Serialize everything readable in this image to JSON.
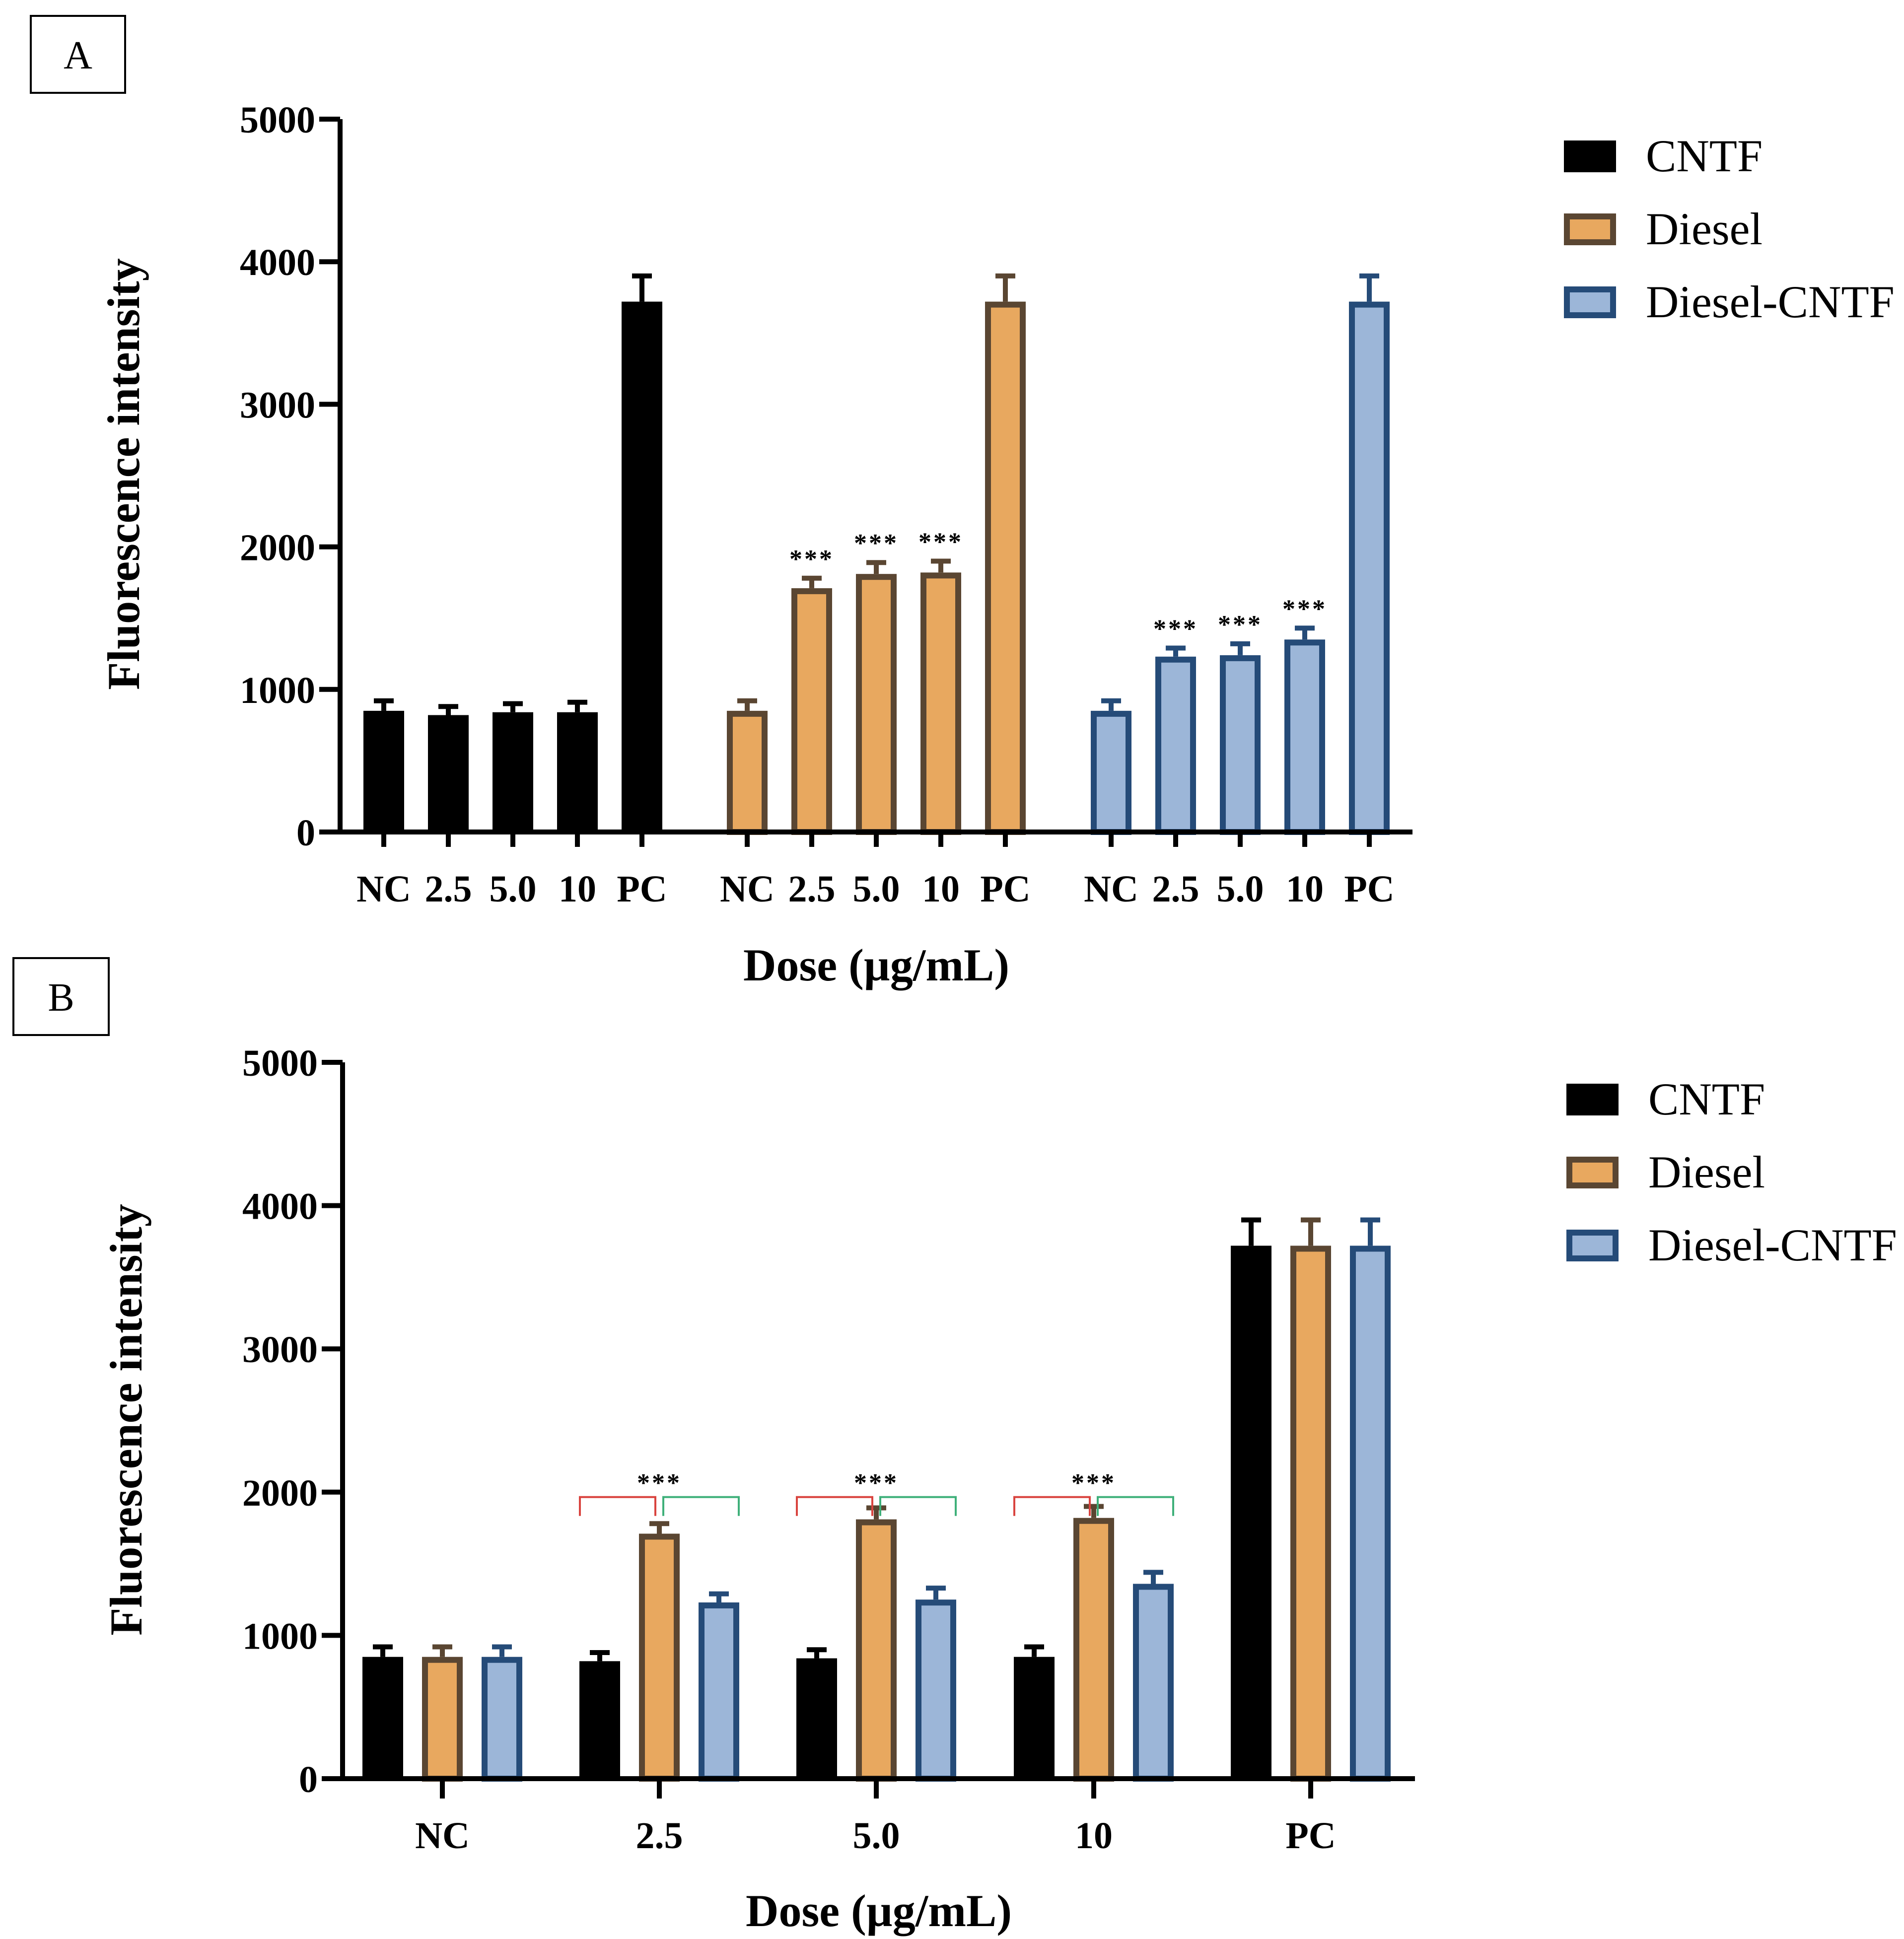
{
  "colors": {
    "cntf_fill": "#000000",
    "cntf_stroke": "#000000",
    "diesel_fill": "#e8a85f",
    "diesel_stroke": "#5a4632",
    "dcntf_fill": "#9cb6d8",
    "dcntf_stroke": "#254b78",
    "bracket_left": "#d9443f",
    "bracket_right": "#3fb07a"
  },
  "chart_data": [
    {
      "panel": "A",
      "type": "bar",
      "ylabel": "Fluorescence intensity",
      "xlabel": "Dose (µg/mL)",
      "ylim": [
        0,
        5000
      ],
      "yticks": [
        0,
        1000,
        2000,
        3000,
        4000,
        5000
      ],
      "legend": [
        "CNTF",
        "Diesel",
        "Diesel-CNTF"
      ],
      "legend_position": "right",
      "groups": [
        {
          "series": "CNTF",
          "categories": [
            "NC",
            "2.5",
            "5.0",
            "10",
            "PC"
          ],
          "values": [
            850,
            820,
            840,
            840,
            3720
          ],
          "errors": [
            70,
            60,
            60,
            70,
            180
          ],
          "significance": [
            "",
            "",
            "",
            "",
            ""
          ]
        },
        {
          "series": "Diesel",
          "categories": [
            "NC",
            "2.5",
            "5.0",
            "10",
            "PC"
          ],
          "values": [
            850,
            1710,
            1810,
            1820,
            3720
          ],
          "errors": [
            70,
            70,
            80,
            80,
            180
          ],
          "significance": [
            "",
            "***",
            "***",
            "***",
            ""
          ]
        },
        {
          "series": "Diesel-CNTF",
          "categories": [
            "NC",
            "2.5",
            "5.0",
            "10",
            "PC"
          ],
          "values": [
            850,
            1230,
            1240,
            1350,
            3720
          ],
          "errors": [
            70,
            60,
            80,
            80,
            180
          ],
          "significance": [
            "",
            "***",
            "***",
            "***",
            ""
          ]
        }
      ]
    },
    {
      "panel": "B",
      "type": "bar",
      "ylabel": "Fluorescence intensity",
      "xlabel": "Dose (µg/mL)",
      "ylim": [
        0,
        5000
      ],
      "yticks": [
        0,
        1000,
        2000,
        3000,
        4000,
        5000
      ],
      "legend": [
        "CNTF",
        "Diesel",
        "Diesel-CNTF"
      ],
      "legend_position": "right",
      "categories": [
        "NC",
        "2.5",
        "5.0",
        "10",
        "PC"
      ],
      "series": [
        {
          "name": "CNTF",
          "values": [
            850,
            820,
            840,
            850,
            3720
          ],
          "errors": [
            70,
            60,
            60,
            70,
            180
          ]
        },
        {
          "name": "Diesel",
          "values": [
            850,
            1710,
            1810,
            1820,
            3720
          ],
          "errors": [
            70,
            70,
            80,
            80,
            180
          ]
        },
        {
          "name": "Diesel-CNTF",
          "values": [
            850,
            1230,
            1250,
            1360,
            3720
          ],
          "errors": [
            70,
            60,
            80,
            80,
            180
          ]
        }
      ],
      "significance": [
        "",
        "***",
        "***",
        "***",
        ""
      ]
    }
  ]
}
